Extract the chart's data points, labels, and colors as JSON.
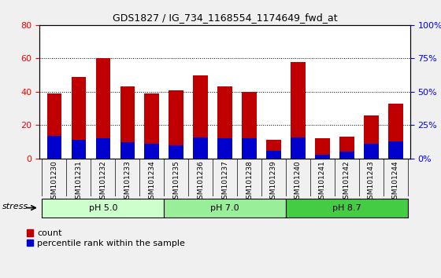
{
  "title": "GDS1827 / IG_734_1168554_1174649_fwd_at",
  "samples": [
    "GSM101230",
    "GSM101231",
    "GSM101232",
    "GSM101233",
    "GSM101234",
    "GSM101235",
    "GSM101236",
    "GSM101237",
    "GSM101238",
    "GSM101239",
    "GSM101240",
    "GSM101241",
    "GSM101242",
    "GSM101243",
    "GSM101244"
  ],
  "count_values": [
    39,
    49,
    60,
    43,
    39,
    41,
    50,
    43,
    40,
    11,
    58,
    12,
    13,
    26,
    33
  ],
  "percentile_values": [
    17,
    14,
    15,
    12,
    11,
    10,
    16,
    15,
    15,
    6,
    16,
    3,
    5,
    11,
    13
  ],
  "bar_color": "#C00000",
  "percentile_color": "#0000CC",
  "ylim_left": [
    0,
    80
  ],
  "yticks_left": [
    0,
    20,
    40,
    60,
    80
  ],
  "yticks_right": [
    0,
    25,
    50,
    75,
    100
  ],
  "ytick_labels_right": [
    "0%",
    "25%",
    "50%",
    "75%",
    "100%"
  ],
  "groups": [
    {
      "label": "pH 5.0",
      "start": 0,
      "end": 5,
      "color": "#CCFFCC"
    },
    {
      "label": "pH 7.0",
      "start": 5,
      "end": 10,
      "color": "#99EE99"
    },
    {
      "label": "pH 8.7",
      "start": 10,
      "end": 15,
      "color": "#44CC44"
    }
  ],
  "stress_label": "stress",
  "legend_count_label": "count",
  "legend_percentile_label": "percentile rank within the sample",
  "background_color": "#F0F0F0",
  "plot_bg_color": "#FFFFFF",
  "xtick_bg_color": "#D0D0D0"
}
